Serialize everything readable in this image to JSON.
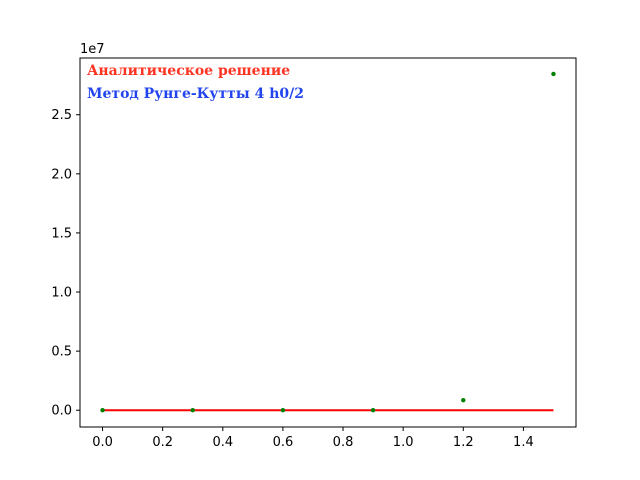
{
  "chart_data": {
    "type": "line",
    "title": "",
    "xlabel": "",
    "ylabel": "",
    "xlim": [
      -0.075,
      1.575
    ],
    "ylim": [
      -1420000,
      29800000
    ],
    "y_offset_label": "1e7",
    "y_scale_factor": 10000000,
    "grid": false,
    "legend_placement": "top-left",
    "x_ticks": [
      0.0,
      0.2,
      0.4,
      0.6,
      0.8,
      1.0,
      1.2,
      1.4
    ],
    "x_tick_labels": [
      "0.0",
      "0.2",
      "0.4",
      "0.6",
      "0.8",
      "1.0",
      "1.2",
      "1.4"
    ],
    "y_ticks": [
      0,
      5000000,
      10000000,
      15000000,
      20000000,
      25000000
    ],
    "y_tick_labels": [
      "0.0",
      "0.5",
      "1.0",
      "1.5",
      "2.0",
      "2.5"
    ],
    "series": [
      {
        "name": "Аналитическое решение",
        "kind": "line",
        "color": "#ff0000",
        "x": [
          0.0,
          1.5
        ],
        "y": [
          0,
          0
        ]
      },
      {
        "name": "Метод Рунге-Кутты 4 h0/2",
        "kind": "scatter",
        "color": "#008000",
        "x": [
          0.0,
          0.3,
          0.6,
          0.9,
          1.2,
          1.5
        ],
        "y": [
          0,
          0,
          0,
          0,
          850000,
          28450000
        ]
      }
    ],
    "legend_text_colors": [
      "#ff3322",
      "#2244ee"
    ]
  }
}
